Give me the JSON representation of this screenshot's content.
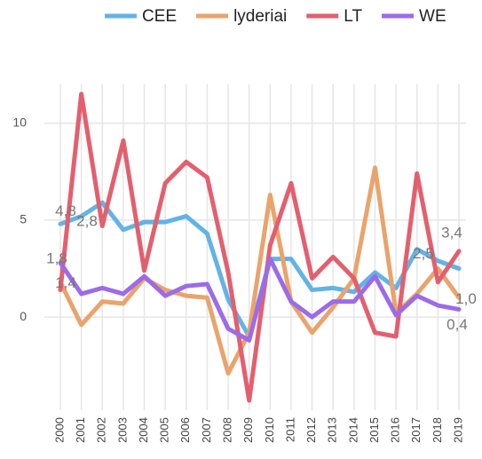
{
  "chart_data": {
    "type": "line",
    "categories": [
      "2000",
      "2001",
      "2002",
      "2003",
      "2004",
      "2005",
      "2006",
      "2007",
      "2008",
      "2009",
      "2010",
      "2011",
      "2012",
      "2013",
      "2014",
      "2015",
      "2016",
      "2017",
      "2018",
      "2019"
    ],
    "series": [
      {
        "name": "CEE",
        "color": "#62b3e6",
        "values": [
          4.8,
          5.2,
          5.9,
          4.5,
          4.9,
          4.9,
          5.2,
          4.3,
          0.9,
          -1.0,
          3.0,
          3.0,
          1.4,
          1.5,
          1.3,
          2.3,
          1.5,
          3.5,
          2.9,
          2.5
        ],
        "value_labels": [
          "4,8",
          null,
          null,
          null,
          null,
          null,
          null,
          null,
          null,
          null,
          null,
          null,
          null,
          null,
          null,
          null,
          null,
          null,
          null,
          "2,5"
        ]
      },
      {
        "name": "lyderiai",
        "color": "#e9a46c",
        "values": [
          1.8,
          -0.4,
          0.8,
          0.7,
          2.0,
          1.4,
          1.1,
          1.0,
          -2.9,
          -0.8,
          6.3,
          0.8,
          -0.8,
          0.5,
          2.0,
          7.7,
          0.2,
          1.2,
          2.5,
          1.0
        ],
        "value_labels": [
          "1,8",
          null,
          null,
          null,
          null,
          null,
          null,
          null,
          null,
          null,
          null,
          null,
          null,
          null,
          null,
          null,
          null,
          null,
          null,
          "1,0"
        ]
      },
      {
        "name": "LT",
        "color": "#e45f6e",
        "values": [
          1.4,
          11.5,
          4.7,
          9.1,
          2.4,
          6.9,
          8.0,
          7.2,
          2.3,
          -4.3,
          3.7,
          6.9,
          2.0,
          3.1,
          2.0,
          -0.8,
          -1.0,
          7.4,
          1.8,
          3.4
        ],
        "value_labels": [
          "1,4",
          null,
          null,
          null,
          null,
          null,
          null,
          null,
          null,
          null,
          null,
          null,
          null,
          null,
          null,
          null,
          null,
          null,
          null,
          "3,4"
        ]
      },
      {
        "name": "WE",
        "color": "#9c6be8",
        "values": [
          2.8,
          1.2,
          1.5,
          1.2,
          2.1,
          1.1,
          1.6,
          1.7,
          -0.6,
          -1.2,
          3.0,
          0.8,
          0.0,
          0.8,
          0.8,
          2.1,
          0.1,
          1.1,
          0.6,
          0.4
        ],
        "value_labels": [
          "2,8",
          null,
          null,
          null,
          null,
          null,
          null,
          null,
          null,
          null,
          null,
          null,
          null,
          null,
          null,
          null,
          null,
          null,
          null,
          "0,4"
        ]
      }
    ],
    "ylim": [
      -4.8,
      12
    ],
    "yticks": [
      0,
      5,
      10
    ],
    "grid": true,
    "legend": "top"
  }
}
